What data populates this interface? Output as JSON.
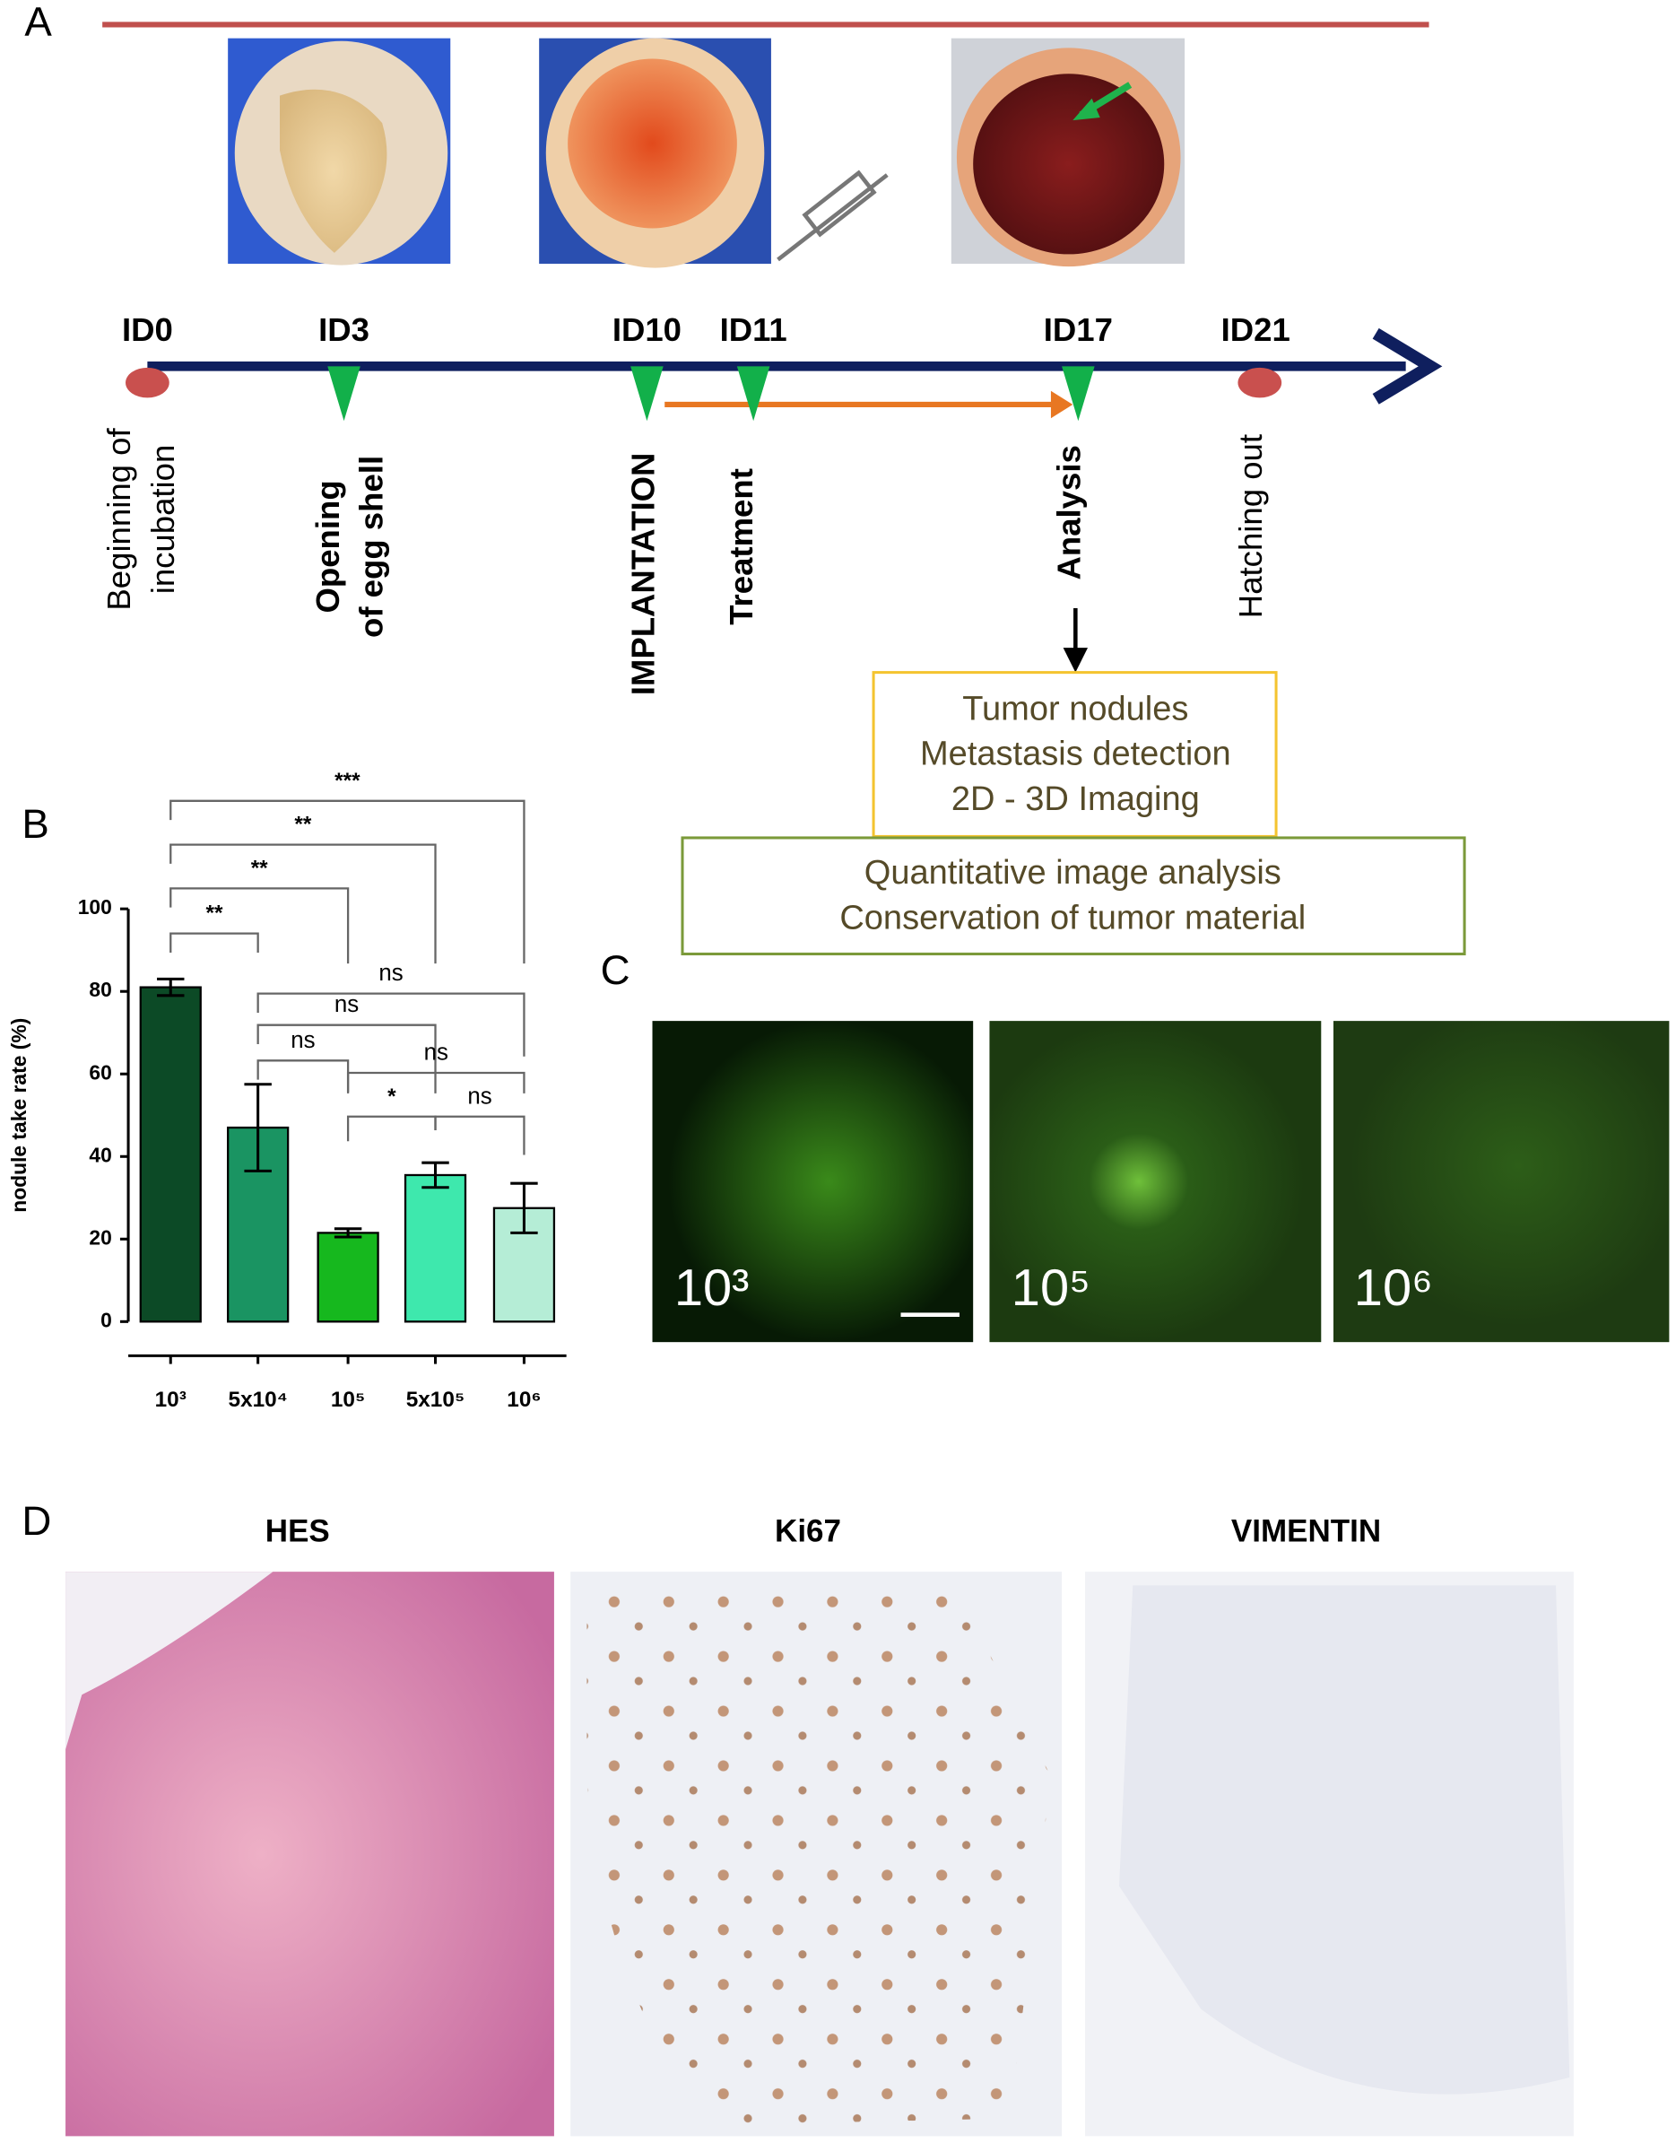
{
  "panel_labels": [
    "A",
    "B",
    "C",
    "D"
  ],
  "timeline": {
    "days": [
      {
        "label": "ID0",
        "event": [
          "Beginning of",
          "incubation"
        ]
      },
      {
        "label": "ID3",
        "event": [
          "Opening",
          "of egg shell"
        ]
      },
      {
        "label": "ID10",
        "event": [
          "IMPLANTATION"
        ]
      },
      {
        "label": "ID11",
        "event": [
          "Treatment"
        ]
      },
      {
        "label": "ID17",
        "event": [
          "Analysis"
        ]
      },
      {
        "label": "ID21",
        "event": [
          "Hatching out"
        ]
      }
    ]
  },
  "outcomes": {
    "primary": [
      "Tumor nodules",
      "Metastasis detection",
      "2D - 3D Imaging"
    ],
    "secondary": [
      "Quantitative image analysis",
      "Conservation of tumor material"
    ]
  },
  "chart_data": {
    "type": "bar",
    "ylabel": "nodule take rate (%)",
    "categories": [
      "10³",
      "5x10⁴",
      "10⁵",
      "5x10⁵",
      "10⁶"
    ],
    "values": [
      81,
      47,
      21.5,
      35.5,
      27.5
    ],
    "errors": [
      2,
      10.5,
      1,
      3,
      6
    ],
    "colors": [
      "#0c4a26",
      "#1a9462",
      "#16b81e",
      "#3ee8ad",
      "#b5edd6"
    ],
    "ylim": [
      0,
      100
    ],
    "yticks": [
      0,
      20,
      40,
      60,
      80,
      100
    ],
    "comparisons": [
      {
        "label": "***",
        "between": [
          "10³",
          "10⁶"
        ]
      },
      {
        "label": "**",
        "between": [
          "10³",
          "5x10⁵"
        ]
      },
      {
        "label": "**",
        "between": [
          "10³",
          "10⁵"
        ]
      },
      {
        "label": "**",
        "between": [
          "10³",
          "5x10⁴"
        ]
      },
      {
        "label": "ns",
        "between": [
          "5x10⁴",
          "10⁶"
        ]
      },
      {
        "label": "ns",
        "between": [
          "5x10⁴",
          "5x10⁵"
        ]
      },
      {
        "label": "ns",
        "between": [
          "5x10⁴",
          "10⁵"
        ]
      },
      {
        "label": "ns",
        "between": [
          "10⁵",
          "10⁶"
        ]
      },
      {
        "label": "*",
        "between": [
          "10⁵",
          "5x10⁵"
        ]
      },
      {
        "label": "ns",
        "between": [
          "5x10⁵",
          "10⁶"
        ]
      }
    ]
  },
  "panel_c": {
    "labels": [
      "10³",
      "10⁵",
      "10⁶"
    ]
  },
  "panel_d": {
    "titles": [
      "HES",
      "Ki67",
      "VIMENTIN"
    ]
  }
}
